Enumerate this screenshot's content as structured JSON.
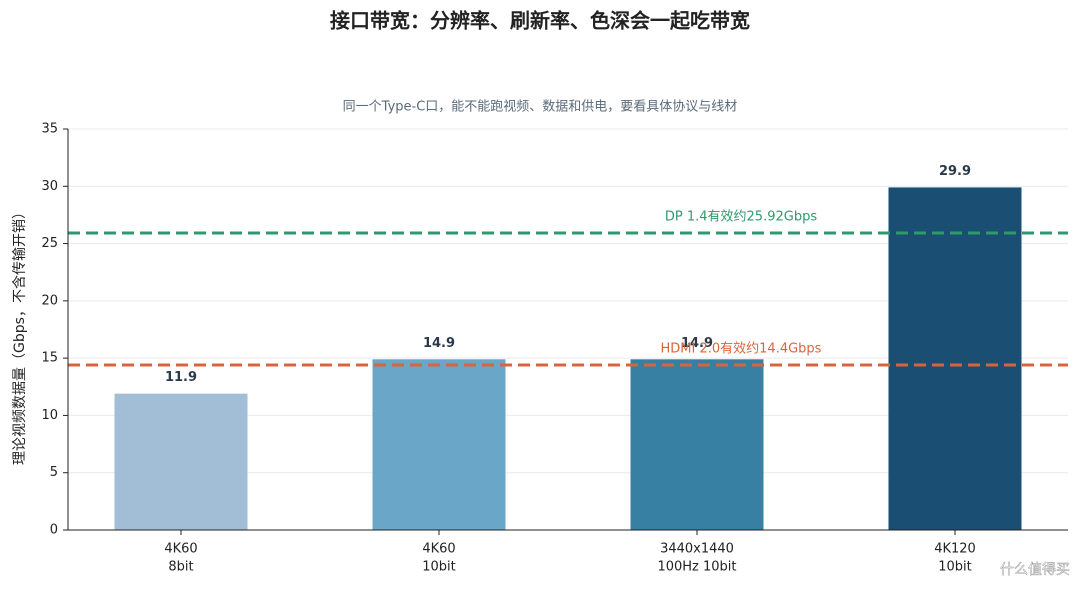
{
  "chart_data": {
    "type": "bar",
    "title": "接口带宽：分辨率、刷新率、色深会一起吃带宽",
    "subtitle": "同一个Type-C口，能不能跑视频、数据和供电，要看具体协议与线材",
    "y_label": "理论视频数据量（Gbps，不含传输开销）",
    "categories": [
      [
        "4K60",
        "8bit"
      ],
      [
        "4K60",
        "10bit"
      ],
      [
        "3440x1440",
        "100Hz 10bit"
      ],
      [
        "4K120",
        "10bit"
      ]
    ],
    "values": [
      11.9,
      14.9,
      14.9,
      29.9
    ],
    "colors": [
      "#a2bed6",
      "#6aa6c8",
      "#387fa4",
      "#1a4e72"
    ],
    "ylim": [
      0,
      35
    ],
    "yticks": [
      0,
      5,
      10,
      15,
      20,
      25,
      30,
      35
    ],
    "grid": true,
    "reference_lines": [
      {
        "label": "DP 1.4有效约25.92Gbps",
        "value": 25.92,
        "color": "#2e9a6c"
      },
      {
        "label": "HDMI 2.0有效约14.4Gbps",
        "value": 14.4,
        "color": "#d8643d"
      }
    ],
    "watermark": "什么值得买"
  }
}
